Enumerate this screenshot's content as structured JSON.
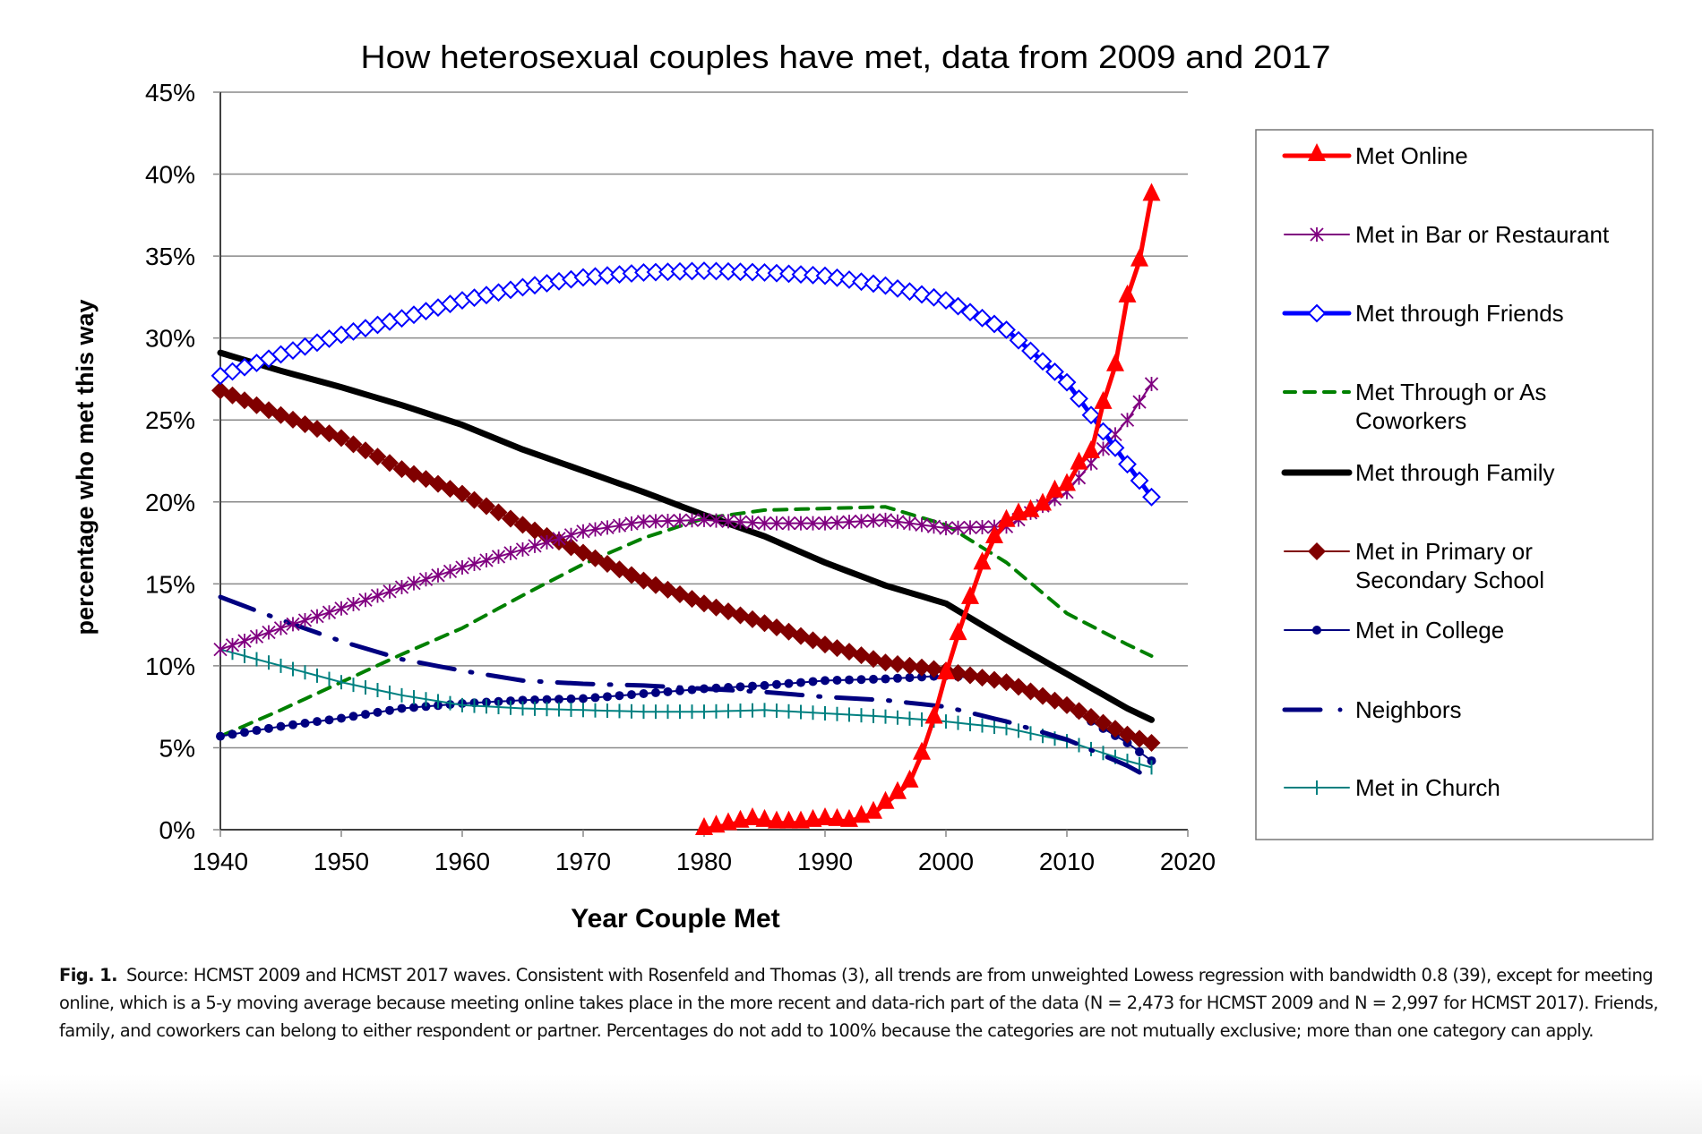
{
  "chart_data": {
    "type": "line",
    "title": "How heterosexual couples have met, data from 2009 and 2017",
    "xlabel": "Year Couple Met",
    "ylabel": "percentage who met this way",
    "xlim": [
      1940,
      2020
    ],
    "ylim": [
      0,
      45
    ],
    "x_ticks": [
      "1940",
      "1950",
      "1960",
      "1970",
      "1980",
      "1990",
      "2000",
      "2010",
      "2020"
    ],
    "y_ticks": [
      "0%",
      "5%",
      "10%",
      "15%",
      "20%",
      "25%",
      "30%",
      "35%",
      "40%",
      "45%"
    ],
    "grid": "horizontal",
    "legend_position": "right",
    "x": [
      1940,
      1945,
      1950,
      1955,
      1960,
      1965,
      1970,
      1975,
      1980,
      1985,
      1990,
      1995,
      2000,
      2005,
      2010,
      2015,
      2017
    ],
    "series": [
      {
        "name": "Met Online",
        "color": "#ff0000",
        "marker": "triangle",
        "width": 5,
        "x": [
          1980,
          1982,
          1984,
          1986,
          1988,
          1990,
          1992,
          1994,
          1996,
          1997,
          1998,
          1999,
          2000,
          2001,
          2002,
          2003,
          2004,
          2005,
          2006,
          2007,
          2008,
          2009,
          2010,
          2011,
          2012,
          2013,
          2014,
          2015,
          2016,
          2017
        ],
        "values": [
          0,
          0.3,
          0.6,
          0.4,
          0.4,
          0.6,
          0.5,
          1.0,
          2.2,
          2.9,
          4.6,
          6.8,
          9.5,
          11.9,
          14.1,
          16.2,
          17.8,
          18.8,
          19.2,
          19.4,
          19.8,
          20.6,
          21.0,
          22.3,
          23.0,
          26.0,
          28.3,
          32.5,
          34.7,
          38.7
        ]
      },
      {
        "name": "Met in Bar or Restaurant",
        "color": "#800080",
        "marker": "asterisk",
        "width": 2,
        "values": [
          11.0,
          12.3,
          13.5,
          14.8,
          16.0,
          17.1,
          18.2,
          18.8,
          18.9,
          18.7,
          18.7,
          18.9,
          18.4,
          18.5,
          20.6,
          25.0,
          27.2
        ]
      },
      {
        "name": "Met through Friends",
        "color": "#0000ff",
        "marker": "diamond-open",
        "width": 5,
        "values": [
          27.7,
          29.0,
          30.2,
          31.2,
          32.3,
          33.1,
          33.7,
          34.0,
          34.1,
          34.0,
          33.8,
          33.2,
          32.3,
          30.5,
          27.3,
          22.3,
          20.3
        ]
      },
      {
        "name": "Met Through or As Coworkers",
        "color": "#008000",
        "marker": "none",
        "dash": "dashed",
        "width": 4,
        "values": [
          5.7,
          7.3,
          9.0,
          10.7,
          12.3,
          14.3,
          16.2,
          17.8,
          19.0,
          19.5,
          19.6,
          19.7,
          18.6,
          16.3,
          13.2,
          11.3,
          10.6
        ]
      },
      {
        "name": "Met through Family",
        "color": "#000000",
        "marker": "none",
        "width": 7,
        "values": [
          29.1,
          28.0,
          27.0,
          25.9,
          24.7,
          23.2,
          21.9,
          20.6,
          19.2,
          17.9,
          16.3,
          14.9,
          13.8,
          11.6,
          9.5,
          7.4,
          6.7
        ]
      },
      {
        "name": "Met in Primary or Secondary School",
        "color": "#800000",
        "marker": "diamond",
        "width": 2,
        "values": [
          26.8,
          25.3,
          23.9,
          22.0,
          20.5,
          18.6,
          16.9,
          15.2,
          13.8,
          12.6,
          11.3,
          10.2,
          9.7,
          9.0,
          7.6,
          5.8,
          5.3
        ]
      },
      {
        "name": "Met in College",
        "color": "#000080",
        "marker": "circle",
        "width": 2,
        "values": [
          5.7,
          6.3,
          6.8,
          7.4,
          7.7,
          7.9,
          8.0,
          8.3,
          8.6,
          8.8,
          9.1,
          9.2,
          9.4,
          9.1,
          7.5,
          5.3,
          4.2
        ]
      },
      {
        "name": "Neighbors",
        "color": "#000080",
        "marker": "none",
        "dash": "dash-dot",
        "width": 5,
        "values": [
          14.2,
          12.8,
          11.5,
          10.4,
          9.7,
          9.1,
          8.9,
          8.8,
          8.6,
          8.4,
          8.1,
          7.9,
          7.5,
          6.6,
          5.5,
          3.9,
          3.1
        ]
      },
      {
        "name": "Met in Church",
        "color": "#008080",
        "marker": "plus",
        "width": 2,
        "values": [
          11.0,
          10.0,
          9.0,
          8.2,
          7.6,
          7.4,
          7.3,
          7.2,
          7.2,
          7.3,
          7.1,
          6.9,
          6.6,
          6.2,
          5.4,
          4.2,
          3.8
        ]
      }
    ]
  },
  "legend": {
    "items": [
      {
        "lines": [
          "Met Online"
        ]
      },
      {
        "lines": [
          "Met in Bar or Restaurant"
        ]
      },
      {
        "lines": [
          "Met through Friends"
        ]
      },
      {
        "lines": [
          "Met Through or As",
          "Coworkers"
        ]
      },
      {
        "lines": [
          "Met through Family"
        ]
      },
      {
        "lines": [
          "Met in Primary or",
          "Secondary School"
        ]
      },
      {
        "lines": [
          "Met in College"
        ]
      },
      {
        "lines": [
          "Neighbors"
        ]
      },
      {
        "lines": [
          "Met in Church"
        ]
      }
    ]
  },
  "caption": {
    "label": "Fig. 1.",
    "text": "Source: HCMST 2009 and HCMST 2017 waves. Consistent with Rosenfeld and Thomas (3), all trends are from unweighted Lowess regression with bandwidth 0.8 (39), except for meeting online, which is a 5-y moving average because meeting online takes place in the more recent and data-rich part of the data (N = 2,473 for HCMST 2009 and N = 2,997 for HCMST 2017). Friends, family, and coworkers can belong to either respondent or partner. Percentages do not add to 100% because the categories are not mutually exclusive; more than one category can apply."
  }
}
